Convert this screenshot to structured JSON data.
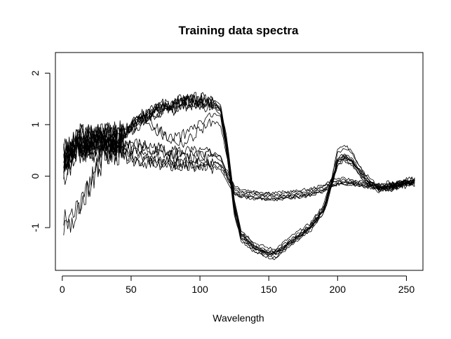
{
  "chart_data": {
    "type": "line",
    "title": "Training data spectra",
    "xlabel": "Wavelength",
    "ylabel": "",
    "xlim": [
      -5,
      262
    ],
    "ylim": [
      -1.83,
      2.4
    ],
    "x_ticks": [
      0,
      50,
      100,
      150,
      200,
      250
    ],
    "y_ticks": [
      -1,
      0,
      1,
      2
    ],
    "line_color": "#000000",
    "grid": false,
    "legend": "none",
    "x": [
      1,
      10,
      20,
      30,
      40,
      50,
      60,
      70,
      80,
      90,
      100,
      110,
      115,
      120,
      125,
      130,
      140,
      150,
      155,
      160,
      170,
      180,
      190,
      195,
      200,
      205,
      210,
      220,
      230,
      240,
      250,
      256
    ],
    "series": [
      {
        "values": [
          0.25,
          0.6,
          0.7,
          0.75,
          0.7,
          0.95,
          1.15,
          1.3,
          1.35,
          1.45,
          1.45,
          1.4,
          1.3,
          0.5,
          -0.6,
          -1.15,
          -1.4,
          -1.5,
          -1.5,
          -1.4,
          -1.2,
          -1.0,
          -0.65,
          -0.2,
          0.3,
          0.38,
          0.3,
          -0.05,
          -0.25,
          -0.2,
          -0.12,
          -0.1
        ]
      },
      {
        "values": [
          0.45,
          0.7,
          0.75,
          0.8,
          0.75,
          1.0,
          1.2,
          1.35,
          1.4,
          1.5,
          1.5,
          1.45,
          1.35,
          0.6,
          -0.5,
          -1.1,
          -1.35,
          -1.45,
          -1.45,
          -1.35,
          -1.15,
          -0.95,
          -0.6,
          -0.15,
          0.35,
          0.43,
          0.35,
          0.0,
          -0.22,
          -0.18,
          -0.1,
          -0.08
        ]
      },
      {
        "values": [
          0.1,
          0.5,
          0.6,
          0.7,
          0.68,
          0.9,
          1.1,
          1.25,
          1.3,
          1.4,
          1.4,
          1.35,
          1.25,
          0.4,
          -0.7,
          -1.2,
          -1.45,
          -1.55,
          -1.58,
          -1.45,
          -1.25,
          -1.05,
          -0.7,
          -0.25,
          0.25,
          0.33,
          0.25,
          -0.1,
          -0.28,
          -0.22,
          -0.14,
          -0.12
        ]
      },
      {
        "values": [
          0.3,
          0.65,
          0.72,
          0.78,
          0.72,
          0.98,
          1.18,
          1.32,
          1.38,
          1.47,
          1.47,
          1.42,
          1.32,
          0.55,
          -0.55,
          -1.12,
          -1.38,
          -1.48,
          -1.48,
          -1.38,
          -1.18,
          -0.98,
          -0.62,
          -0.18,
          0.32,
          0.4,
          0.32,
          -0.02,
          -0.24,
          -0.19,
          -0.11,
          -0.09
        ]
      },
      {
        "values": [
          0.2,
          0.55,
          0.65,
          0.72,
          0.7,
          0.92,
          1.12,
          1.28,
          1.33,
          1.42,
          1.42,
          1.38,
          1.28,
          0.45,
          -0.65,
          -1.18,
          -1.42,
          -1.52,
          -1.52,
          -1.42,
          -1.22,
          -1.02,
          -0.68,
          -0.22,
          0.28,
          0.36,
          0.28,
          -0.07,
          -0.26,
          -0.21,
          -0.13,
          -0.11
        ]
      },
      {
        "values": [
          0.5,
          0.75,
          0.78,
          0.82,
          0.78,
          1.02,
          1.22,
          1.38,
          1.42,
          1.52,
          1.52,
          1.47,
          1.37,
          0.65,
          -0.45,
          -1.05,
          -1.3,
          -1.4,
          -1.42,
          -1.3,
          -1.1,
          -0.92,
          -0.55,
          -0.1,
          0.45,
          0.55,
          0.45,
          0.05,
          -0.2,
          -0.16,
          -0.08,
          -0.06
        ]
      },
      {
        "values": [
          0.0,
          0.45,
          0.58,
          0.68,
          0.66,
          0.88,
          1.08,
          1.22,
          1.28,
          1.38,
          1.38,
          1.33,
          1.22,
          0.35,
          -0.75,
          -1.25,
          -1.48,
          -1.58,
          -1.6,
          -1.48,
          -1.28,
          -1.08,
          -0.72,
          -0.28,
          0.22,
          0.3,
          0.22,
          -0.12,
          -0.3,
          -0.24,
          -0.15,
          -0.13
        ]
      },
      {
        "values": [
          -0.9,
          -0.7,
          -0.1,
          0.4,
          0.6,
          0.65,
          0.6,
          0.55,
          0.5,
          0.48,
          0.45,
          0.45,
          0.4,
          0.0,
          -0.3,
          -0.38,
          -0.42,
          -0.44,
          -0.44,
          -0.42,
          -0.4,
          -0.36,
          -0.28,
          -0.2,
          -0.15,
          -0.14,
          -0.14,
          -0.18,
          -0.22,
          -0.2,
          -0.15,
          -0.1
        ]
      },
      {
        "values": [
          -1.0,
          -0.8,
          -0.2,
          0.35,
          0.55,
          0.6,
          0.55,
          0.5,
          0.46,
          0.44,
          0.42,
          0.42,
          0.37,
          -0.05,
          -0.33,
          -0.4,
          -0.44,
          -0.46,
          -0.46,
          -0.44,
          -0.42,
          -0.38,
          -0.3,
          -0.22,
          -0.17,
          -0.16,
          -0.16,
          -0.2,
          -0.24,
          -0.22,
          -0.17,
          -0.12
        ]
      },
      {
        "values": [
          0.4,
          0.55,
          0.6,
          0.6,
          0.55,
          0.45,
          0.4,
          0.35,
          0.3,
          0.28,
          0.27,
          0.27,
          0.25,
          0.05,
          -0.22,
          -0.28,
          -0.32,
          -0.35,
          -0.35,
          -0.34,
          -0.32,
          -0.28,
          -0.2,
          -0.12,
          -0.08,
          -0.08,
          -0.1,
          -0.14,
          -0.18,
          -0.16,
          -0.12,
          -0.1
        ]
      },
      {
        "values": [
          0.35,
          0.5,
          0.55,
          0.57,
          0.5,
          0.4,
          0.35,
          0.3,
          0.26,
          0.24,
          0.24,
          0.24,
          0.22,
          0.0,
          -0.25,
          -0.31,
          -0.35,
          -0.38,
          -0.38,
          -0.37,
          -0.35,
          -0.31,
          -0.23,
          -0.15,
          -0.1,
          -0.1,
          -0.12,
          -0.16,
          -0.2,
          -0.18,
          -0.14,
          -0.12
        ]
      },
      {
        "values": [
          0.3,
          0.48,
          0.52,
          0.55,
          0.47,
          0.35,
          0.3,
          0.25,
          0.22,
          0.2,
          0.2,
          0.2,
          0.18,
          -0.05,
          -0.3,
          -0.35,
          -0.38,
          -0.4,
          -0.4,
          -0.39,
          -0.37,
          -0.33,
          -0.25,
          -0.17,
          -0.12,
          -0.12,
          -0.14,
          -0.18,
          -0.22,
          -0.2,
          -0.16,
          -0.14
        ]
      },
      {
        "values": [
          0.5,
          0.6,
          0.65,
          0.7,
          0.65,
          0.55,
          0.5,
          0.45,
          0.4,
          0.38,
          0.37,
          0.37,
          0.33,
          0.1,
          -0.18,
          -0.25,
          -0.3,
          -0.32,
          -0.32,
          -0.31,
          -0.29,
          -0.25,
          -0.17,
          -0.09,
          -0.05,
          -0.05,
          -0.07,
          -0.12,
          -0.16,
          -0.14,
          -0.1,
          -0.08
        ]
      },
      {
        "values": [
          0.2,
          0.4,
          0.5,
          0.52,
          0.45,
          0.32,
          0.27,
          0.22,
          0.18,
          0.16,
          0.16,
          0.16,
          0.14,
          -0.1,
          -0.34,
          -0.38,
          -0.42,
          -0.44,
          -0.44,
          -0.43,
          -0.4,
          -0.36,
          -0.28,
          -0.2,
          -0.15,
          -0.15,
          -0.17,
          -0.21,
          -0.25,
          -0.23,
          -0.18,
          -0.16
        ]
      },
      {
        "values": [
          0.4,
          0.65,
          0.72,
          0.78,
          0.72,
          0.98,
          1.15,
          0.9,
          0.75,
          0.8,
          1.05,
          1.2,
          1.15,
          0.4,
          -0.6,
          -1.15,
          -1.4,
          -1.5,
          -1.5,
          -1.4,
          -1.2,
          -1.0,
          -0.65,
          -0.2,
          0.3,
          0.38,
          0.3,
          -0.05,
          -0.25,
          -0.2,
          -0.12,
          -0.1
        ]
      },
      {
        "values": [
          0.3,
          0.6,
          0.7,
          0.75,
          0.7,
          0.95,
          1.12,
          0.85,
          0.68,
          0.65,
          0.9,
          1.05,
          1.0,
          0.3,
          -0.65,
          -1.2,
          -1.42,
          -1.52,
          -1.52,
          -1.42,
          -1.22,
          -1.02,
          -0.66,
          -0.21,
          0.28,
          0.36,
          0.28,
          -0.07,
          -0.26,
          -0.21,
          -0.13,
          -0.11
        ]
      },
      {
        "values": [
          0.35,
          0.62,
          0.72,
          0.78,
          0.72,
          0.97,
          1.17,
          1.33,
          1.38,
          1.47,
          1.47,
          1.42,
          1.32,
          0.55,
          -0.55,
          -1.12,
          -1.38,
          -1.48,
          -1.48,
          -1.38,
          -1.18,
          -0.98,
          -0.62,
          -0.18,
          0.55,
          0.6,
          0.5,
          0.0,
          -0.23,
          -0.18,
          -0.1,
          -0.08
        ]
      }
    ]
  }
}
